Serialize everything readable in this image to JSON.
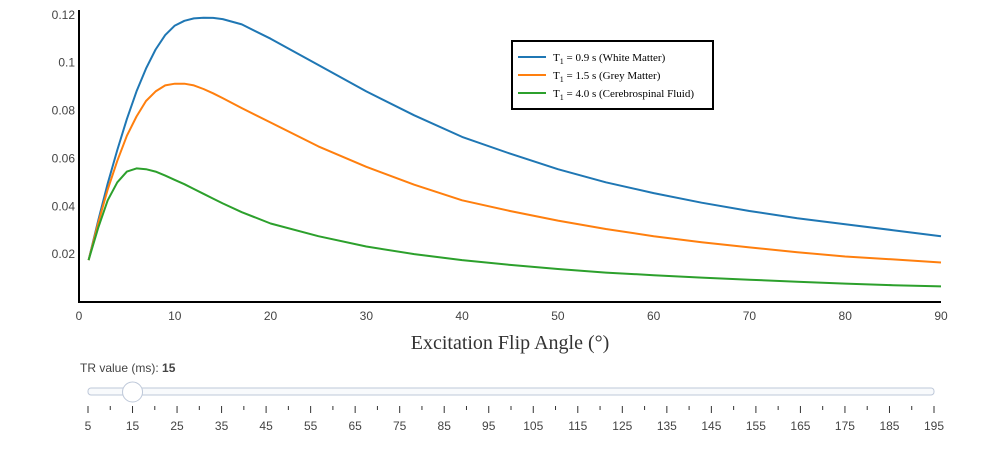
{
  "chart_data": {
    "type": "line",
    "xlabel": "Excitation Flip Angle (°)",
    "ylabel": "",
    "xlim": [
      0,
      90
    ],
    "ylim": [
      0,
      0.122
    ],
    "x_ticks": [
      0,
      10,
      20,
      30,
      40,
      50,
      60,
      70,
      80,
      90
    ],
    "y_ticks": [
      0.02,
      0.04,
      0.06,
      0.08,
      0.1,
      0.12
    ],
    "grid": false,
    "legend_position": "top-right",
    "x": [
      1,
      2,
      3,
      4,
      5,
      6,
      7,
      8,
      9,
      10,
      11,
      12,
      13,
      14,
      15,
      17,
      20,
      25,
      30,
      35,
      40,
      45,
      50,
      55,
      60,
      65,
      70,
      75,
      80,
      85,
      90
    ],
    "series": [
      {
        "name_main": "T",
        "name_sub": "1",
        "name_rest": " = 0.9 s (White Matter)",
        "color": "#1f77b4",
        "values": [
          0.0175,
          0.034,
          0.0495,
          0.0635,
          0.0765,
          0.088,
          0.0975,
          0.1055,
          0.1115,
          0.1155,
          0.1175,
          0.1185,
          0.1188,
          0.1187,
          0.1182,
          0.116,
          0.11,
          0.099,
          0.088,
          0.078,
          0.069,
          0.062,
          0.0555,
          0.05,
          0.0455,
          0.0415,
          0.038,
          0.035,
          0.0325,
          0.03,
          0.0275
        ]
      },
      {
        "name_main": "T",
        "name_sub": "1",
        "name_rest": " = 1.5 s (Grey Matter)",
        "color": "#ff7f0e",
        "values": [
          0.0175,
          0.033,
          0.047,
          0.059,
          0.0695,
          0.0775,
          0.084,
          0.088,
          0.0905,
          0.0912,
          0.0912,
          0.0905,
          0.089,
          0.0872,
          0.0852,
          0.081,
          0.075,
          0.065,
          0.0565,
          0.049,
          0.0425,
          0.038,
          0.034,
          0.0305,
          0.0275,
          0.025,
          0.0228,
          0.0208,
          0.019,
          0.0178,
          0.0165
        ]
      },
      {
        "name_main": "T",
        "name_sub": "1",
        "name_rest": " = 4.0 s (Cerebrospinal Fluid)",
        "color": "#2ca02c",
        "values": [
          0.0175,
          0.031,
          0.0425,
          0.05,
          0.0545,
          0.0558,
          0.0555,
          0.0545,
          0.0528,
          0.051,
          0.0492,
          0.0472,
          0.0452,
          0.0432,
          0.0412,
          0.0375,
          0.0328,
          0.0275,
          0.0232,
          0.02,
          0.0175,
          0.0155,
          0.0138,
          0.0123,
          0.0112,
          0.0102,
          0.0093,
          0.0085,
          0.0077,
          0.007,
          0.0065
        ]
      }
    ]
  },
  "slider": {
    "label_prefix": "TR value (ms): ",
    "current_value": "15",
    "value": 15,
    "min": 5,
    "max": 195,
    "tick_labels": [
      "5",
      "15",
      "25",
      "35",
      "45",
      "55",
      "65",
      "75",
      "85",
      "95",
      "105",
      "115",
      "125",
      "135",
      "145",
      "155",
      "165",
      "175",
      "185",
      "195"
    ]
  }
}
